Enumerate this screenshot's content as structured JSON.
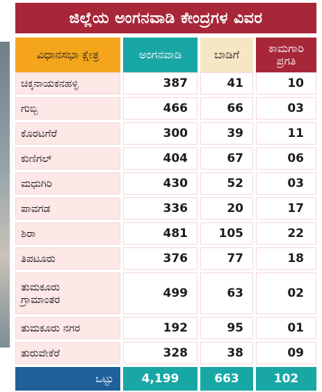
{
  "title": "ಜಿಲ್ಲೆಯ ಅಂಗನವಾಡಿ ಕೇಂದ್ರಗಳ ವಿವರ",
  "headers": {
    "constituency": "ವಿಧಾನಸಭಾ ಕ್ಷೇತ್ರ",
    "anganwadi": "ಅಂಗನವಾಡಿ",
    "rent": "ಬಾಡಿಗೆ",
    "work_line1": "ಕಾಮಗಾರಿ",
    "work_line2": "ಪ್ರಗತಿ"
  },
  "rows": [
    {
      "name": "ಚಿಕ್ಕನಾಯಕನಹಳ್ಳಿ",
      "anganwadi": "387",
      "rent": "41",
      "work": "10"
    },
    {
      "name": "ಗುಬ್ಬಿ",
      "anganwadi": "466",
      "rent": "66",
      "work": "03"
    },
    {
      "name": "ಕೊರಟಗೆರೆ",
      "anganwadi": "300",
      "rent": "39",
      "work": "11"
    },
    {
      "name": "ಕುಣಿಗಲ್",
      "anganwadi": "404",
      "rent": "67",
      "work": "06"
    },
    {
      "name": "ಮಧುಗಿರಿ",
      "anganwadi": "430",
      "rent": "52",
      "work": "03"
    },
    {
      "name": "ಪಾವಗಡ",
      "anganwadi": "336",
      "rent": "20",
      "work": "17"
    },
    {
      "name": "ಶಿರಾ",
      "anganwadi": "481",
      "rent": "105",
      "work": "22"
    },
    {
      "name": "ತಿಪಟೂರು",
      "anganwadi": "376",
      "rent": "77",
      "work": "18"
    },
    {
      "name_line1": "ತುಮಕೂರು",
      "name_line2": "ಗ್ರಾಮಾಂತರ",
      "anganwadi": "499",
      "rent": "63",
      "work": "02"
    },
    {
      "name": "ತುಮಕೂರು ನಗರ",
      "anganwadi": "192",
      "rent": "95",
      "work": "01"
    },
    {
      "name": "ತುರುವೇಕೆರೆ",
      "anganwadi": "328",
      "rent": "38",
      "work": "09"
    }
  ],
  "total": {
    "label": "ಒಟ್ಟು",
    "anganwadi": "4,199",
    "rent": "663",
    "work": "102"
  },
  "colors": {
    "title_bg": "#a72638",
    "header_orange": "#f4a51c",
    "header_teal": "#19a7a6",
    "header_cream": "#f6e6c4",
    "name_cell_pink": "#fde7e7",
    "total_blue": "#1f5f9a"
  }
}
